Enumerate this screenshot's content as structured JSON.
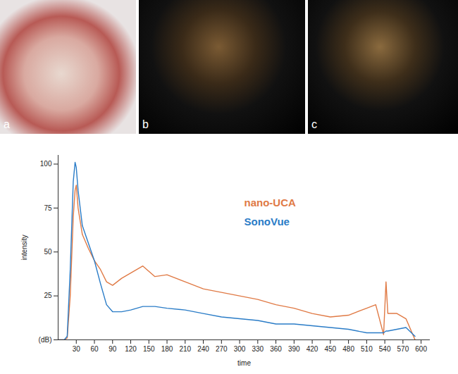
{
  "panels": [
    {
      "label": "a"
    },
    {
      "label": "b"
    },
    {
      "label": "c"
    }
  ],
  "chart_data": {
    "type": "line",
    "x_label": "time",
    "y_label": "intensity",
    "x": [
      0,
      10,
      15,
      20,
      25,
      28,
      30,
      33,
      40,
      50,
      60,
      70,
      80,
      90,
      105,
      120,
      140,
      160,
      180,
      210,
      240,
      270,
      300,
      330,
      360,
      390,
      420,
      450,
      480,
      510,
      525,
      538,
      542,
      545,
      560,
      575,
      590
    ],
    "series": [
      {
        "name": "nano-UCA",
        "color": "#e07a45",
        "values": [
          0,
          0,
          1,
          25,
          70,
          85,
          88,
          75,
          60,
          52,
          45,
          40,
          33,
          31,
          35,
          38,
          42,
          36,
          37,
          33,
          29,
          27,
          25,
          23,
          20,
          18,
          15,
          13,
          14,
          18,
          20,
          3,
          33,
          15,
          15,
          12,
          0
        ]
      },
      {
        "name": "SonoVue",
        "color": "#2a7cc7",
        "values": [
          0,
          0,
          2,
          40,
          90,
          101,
          98,
          85,
          65,
          55,
          45,
          32,
          20,
          16,
          16,
          17,
          19,
          19,
          18,
          17,
          15,
          13,
          12,
          11,
          9,
          9,
          8,
          7,
          6,
          4,
          4,
          4,
          5,
          5,
          6,
          7,
          2
        ]
      }
    ],
    "xlim": [
      0,
      615
    ],
    "xticks": [
      30,
      60,
      90,
      120,
      150,
      180,
      210,
      240,
      270,
      300,
      330,
      360,
      390,
      420,
      450,
      480,
      510,
      540,
      570,
      600
    ],
    "ylim": [
      0,
      105
    ],
    "yticks": [
      {
        "value": 0,
        "label": "(dB)"
      },
      25,
      50,
      75,
      100
    ],
    "legend": "top-right",
    "grid": false
  }
}
